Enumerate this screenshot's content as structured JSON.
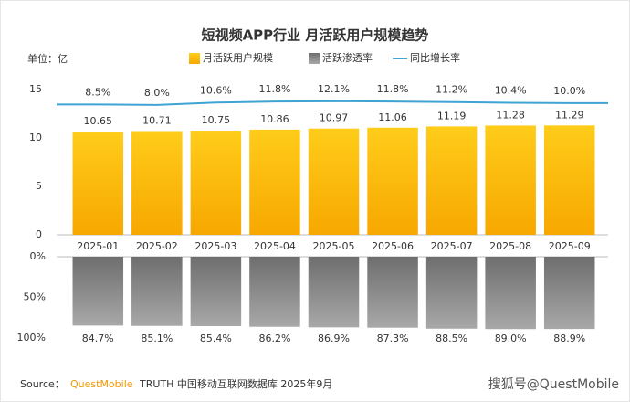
{
  "chart_data": {
    "type": "bar",
    "title": "短视频APP行业 月活跃用户规模趋势",
    "unit": "单位：亿",
    "categories": [
      "2025-01",
      "2025-02",
      "2025-03",
      "2025-04",
      "2025-05",
      "2025-06",
      "2025-07",
      "2025-08",
      "2025-09"
    ],
    "series": [
      {
        "name": "月活跃用户规模",
        "type": "bar",
        "color": "#fbbf0a",
        "values": [
          10.65,
          10.71,
          10.75,
          10.86,
          10.97,
          11.06,
          11.19,
          11.28,
          11.29
        ]
      },
      {
        "name": "活跃渗透率",
        "type": "bar",
        "axis": "y3",
        "color": "#8c8c8c",
        "values": [
          84.7,
          85.1,
          85.4,
          86.2,
          86.9,
          87.3,
          88.5,
          89.0,
          88.9
        ],
        "value_labels": [
          "84.7%",
          "85.1%",
          "85.4%",
          "86.2%",
          "86.9%",
          "87.3%",
          "88.5%",
          "89.0%",
          "88.9%"
        ]
      },
      {
        "name": "同比增长率",
        "type": "line",
        "axis": "y2",
        "color": "#3fa3d3",
        "values": [
          8.5,
          8.0,
          10.6,
          11.8,
          12.1,
          11.8,
          11.2,
          10.4,
          10.0
        ],
        "value_labels": [
          "8.5%",
          "8.0%",
          "10.6%",
          "11.8%",
          "12.1%",
          "11.8%",
          "11.2%",
          "10.4%",
          "10.0%"
        ]
      }
    ],
    "ylim": [
      0,
      15
    ],
    "yticks": [
      0,
      5,
      10,
      15
    ],
    "y2lim": [
      -135,
      25
    ],
    "y3lim": [
      0,
      100
    ],
    "y3ticks": [
      {
        "value": 0,
        "label": "0%"
      },
      {
        "value": 50,
        "label": "50%"
      },
      {
        "value": 100,
        "label": "100%"
      }
    ],
    "source_label": "Source：",
    "source_brand": "QuestMobile",
    "source": "TRUTH 中国移动互联网数据库 2025年9月",
    "watermark": "搜狐号@QuestMobile"
  }
}
